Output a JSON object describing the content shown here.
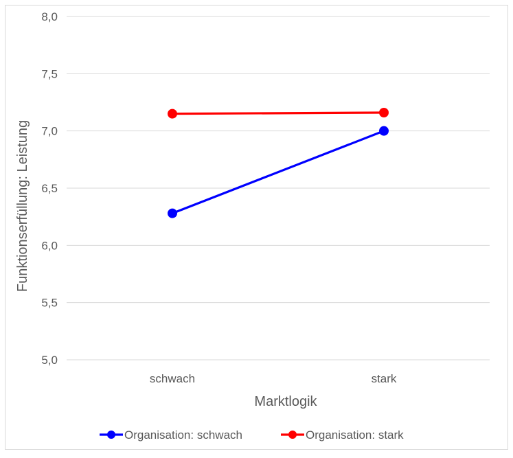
{
  "chart_data": {
    "type": "line",
    "title": "",
    "xlabel": "Marktlogik",
    "ylabel": "Funktionserfüllung: Leistung",
    "categories": [
      "schwach",
      "stark"
    ],
    "ylim": [
      5.0,
      8.0
    ],
    "yticks": [
      5.0,
      5.5,
      6.0,
      6.5,
      7.0,
      7.5,
      8.0
    ],
    "ytick_labels": [
      "5,0",
      "5,5",
      "6,0",
      "6,5",
      "7,0",
      "7,5",
      "8,0"
    ],
    "grid": true,
    "legend_position": "bottom",
    "series": [
      {
        "name": "Organisation: schwach",
        "values": [
          6.28,
          7.0
        ],
        "color": "#0000ff"
      },
      {
        "name": "Organisation: stark",
        "values": [
          7.15,
          7.16
        ],
        "color": "#ff0000"
      }
    ]
  }
}
